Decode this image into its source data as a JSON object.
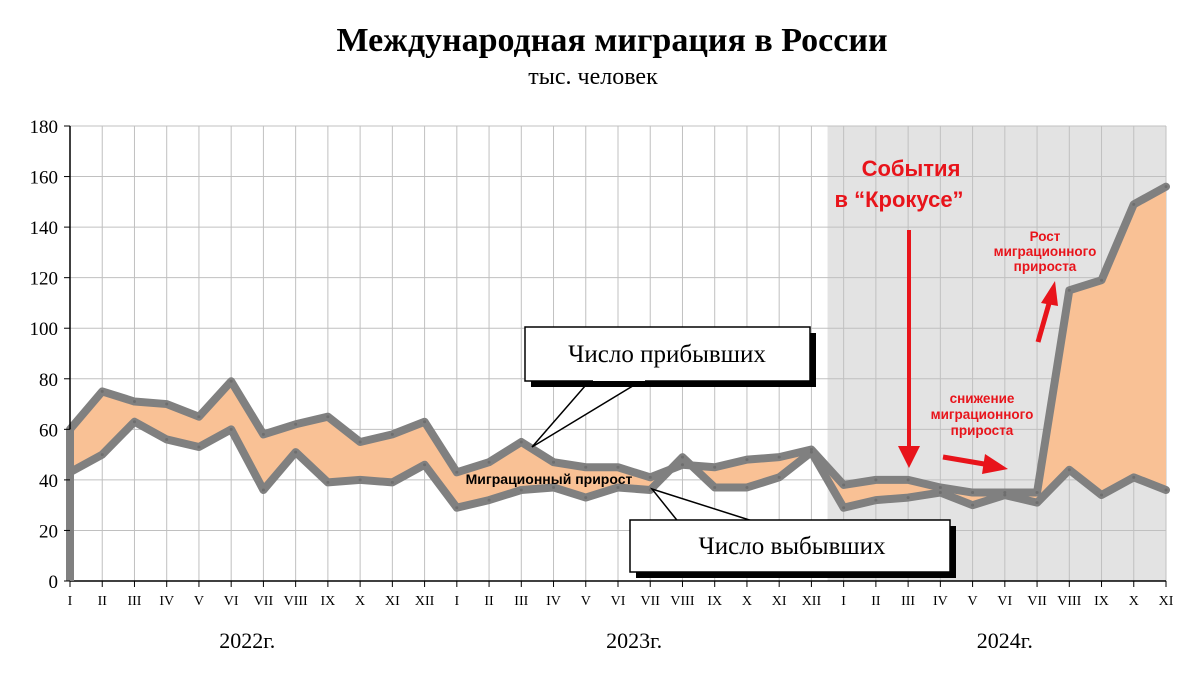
{
  "chart_data": {
    "type": "area",
    "title": "Международная миграция в России",
    "subtitle": "тыс. человек",
    "ylim": [
      0,
      180
    ],
    "yticks": [
      0,
      20,
      40,
      60,
      80,
      100,
      120,
      140,
      160,
      180
    ],
    "grid": true,
    "categories": [
      "I",
      "II",
      "III",
      "IV",
      "V",
      "VI",
      "VII",
      "VIII",
      "IX",
      "X",
      "XI",
      "XII",
      "I",
      "II",
      "III",
      "IV",
      "V",
      "VI",
      "VII",
      "VIII",
      "IX",
      "X",
      "XI",
      "XII",
      "I",
      "II",
      "III",
      "IV",
      "V",
      "VI",
      "VII",
      "VIII",
      "IX",
      "X",
      "XI"
    ],
    "years": [
      "2022г.",
      "2023г.",
      "2024г."
    ],
    "highlight_from_index": 24,
    "series": [
      {
        "name": "Число прибывших",
        "values": [
          60,
          75,
          71,
          70,
          65,
          79,
          58,
          62,
          65,
          55,
          58,
          63,
          43,
          47,
          55,
          47,
          45,
          45,
          41,
          46,
          45,
          48,
          49,
          52,
          38,
          40,
          40,
          37,
          35,
          35,
          35,
          115,
          119,
          149,
          156
        ]
      },
      {
        "name": "Число выбывших",
        "values": [
          43,
          50,
          63,
          56,
          53,
          60,
          36,
          51,
          39,
          40,
          39,
          46,
          29,
          32,
          36,
          37,
          33,
          37,
          36,
          49,
          37,
          37,
          41,
          51,
          29,
          32,
          33,
          35,
          30,
          34,
          31,
          44,
          34,
          41,
          36
        ]
      }
    ],
    "fill_label": "Миграционный прирост",
    "callouts": {
      "arrivals": "Число прибывших",
      "departures": "Число выбывших"
    },
    "annotations": {
      "event_line1": "События",
      "event_line2": "в “Крокусе”",
      "decrease_line1": "снижение",
      "decrease_line2": "миграционного",
      "decrease_line3": "прироста",
      "growth_line1": "Рост",
      "growth_line2": "миграционного",
      "growth_line3": "прироста"
    },
    "colors": {
      "fill": "#f9c195",
      "line": "#808080",
      "grid": "#c0c0c0",
      "highlight_bg": "#e3e3e3",
      "annotation": "#e8141b"
    }
  }
}
